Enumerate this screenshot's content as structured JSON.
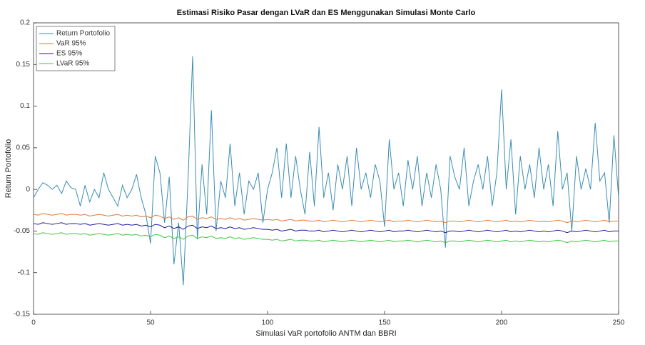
{
  "chart_data": {
    "type": "line",
    "title": "Estimasi Risiko Pasar dengan LVaR dan ES Menggunakan Simulasi Monte Carlo",
    "xlabel": "Simulasi VaR portofolio ANTM dan BBRI",
    "ylabel": "Return Portofolio",
    "x": [
      0,
      2,
      4,
      6,
      8,
      10,
      12,
      14,
      16,
      18,
      20,
      22,
      24,
      26,
      28,
      30,
      32,
      34,
      36,
      38,
      40,
      42,
      44,
      46,
      48,
      50,
      52,
      54,
      56,
      58,
      60,
      62,
      64,
      66,
      68,
      70,
      72,
      74,
      76,
      78,
      80,
      82,
      84,
      86,
      88,
      90,
      92,
      94,
      96,
      98,
      100,
      102,
      104,
      106,
      108,
      110,
      112,
      114,
      116,
      118,
      120,
      122,
      124,
      126,
      128,
      130,
      132,
      134,
      136,
      138,
      140,
      142,
      144,
      146,
      148,
      150,
      152,
      154,
      156,
      158,
      160,
      162,
      164,
      166,
      168,
      170,
      172,
      174,
      176,
      178,
      180,
      182,
      184,
      186,
      188,
      190,
      192,
      194,
      196,
      198,
      200,
      202,
      204,
      206,
      208,
      210,
      212,
      214,
      216,
      218,
      220,
      222,
      224,
      226,
      228,
      230,
      232,
      234,
      236,
      238,
      240,
      242,
      244,
      246,
      248,
      250
    ],
    "series": [
      {
        "name": "Return Portofolio",
        "color": "#3a8db5",
        "values": [
          -0.01,
          0,
          0.008,
          0.005,
          0,
          0.005,
          -0.005,
          0.01,
          0.002,
          0,
          -0.02,
          0.005,
          -0.015,
          0,
          -0.01,
          0.02,
          0,
          -0.01,
          -0.02,
          0.005,
          -0.01,
          0,
          0.018,
          -0.01,
          -0.03,
          -0.065,
          0.04,
          0.02,
          -0.04,
          0.015,
          -0.09,
          -0.04,
          -0.115,
          0.01,
          0.16,
          -0.06,
          0.03,
          -0.03,
          0.095,
          -0.05,
          0.01,
          -0.01,
          0.055,
          -0.02,
          0.02,
          -0.03,
          0.01,
          0,
          0.02,
          -0.04,
          0,
          0.02,
          0.05,
          -0.01,
          0.055,
          -0.01,
          0.04,
          0,
          -0.03,
          0.045,
          -0.02,
          0.075,
          -0.01,
          0.02,
          -0.025,
          0.03,
          0,
          0.04,
          -0.02,
          0.05,
          0,
          0.02,
          -0.01,
          0.03,
          0.01,
          -0.045,
          0.06,
          0,
          0.02,
          -0.02,
          0.035,
          0,
          0.04,
          -0.02,
          0.02,
          -0.01,
          0.03,
          0,
          -0.07,
          0.04,
          0.015,
          0,
          0.05,
          -0.02,
          0.01,
          0.03,
          0,
          0.04,
          -0.02,
          0.02,
          0.12,
          0,
          0.06,
          -0.03,
          0.04,
          0,
          0.03,
          -0.01,
          0.05,
          0,
          0.03,
          -0.02,
          0.07,
          0,
          0.02,
          -0.05,
          0.04,
          0,
          0.025,
          0,
          0.08,
          0.01,
          0.02,
          -0.04,
          0.065,
          -0.01
        ]
      },
      {
        "name": "VaR 95%",
        "color": "#e0793a",
        "values": [
          -0.03,
          -0.031,
          -0.029,
          -0.03,
          -0.031,
          -0.03,
          -0.029,
          -0.031,
          -0.03,
          -0.03,
          -0.031,
          -0.03,
          -0.032,
          -0.031,
          -0.03,
          -0.031,
          -0.032,
          -0.031,
          -0.03,
          -0.032,
          -0.031,
          -0.032,
          -0.031,
          -0.033,
          -0.032,
          -0.034,
          -0.031,
          -0.032,
          -0.035,
          -0.033,
          -0.036,
          -0.034,
          -0.037,
          -0.033,
          -0.032,
          -0.036,
          -0.034,
          -0.035,
          -0.033,
          -0.036,
          -0.035,
          -0.036,
          -0.034,
          -0.036,
          -0.035,
          -0.037,
          -0.036,
          -0.035,
          -0.036,
          -0.037,
          -0.036,
          -0.037,
          -0.036,
          -0.038,
          -0.037,
          -0.036,
          -0.038,
          -0.037,
          -0.037,
          -0.038,
          -0.038,
          -0.037,
          -0.039,
          -0.038,
          -0.037,
          -0.038,
          -0.039,
          -0.038,
          -0.037,
          -0.038,
          -0.039,
          -0.038,
          -0.037,
          -0.038,
          -0.039,
          -0.038,
          -0.037,
          -0.039,
          -0.038,
          -0.038,
          -0.037,
          -0.038,
          -0.039,
          -0.038,
          -0.037,
          -0.038,
          -0.039,
          -0.038,
          -0.04,
          -0.038,
          -0.038,
          -0.039,
          -0.038,
          -0.037,
          -0.038,
          -0.039,
          -0.038,
          -0.037,
          -0.038,
          -0.039,
          -0.038,
          -0.037,
          -0.039,
          -0.038,
          -0.039,
          -0.038,
          -0.037,
          -0.038,
          -0.039,
          -0.038,
          -0.039,
          -0.038,
          -0.037,
          -0.038,
          -0.04,
          -0.038,
          -0.039,
          -0.038,
          -0.037,
          -0.038,
          -0.039,
          -0.038,
          -0.037,
          -0.039,
          -0.038,
          -0.038
        ]
      },
      {
        "name": "ES 95%",
        "color": "#1c1c9a",
        "values": [
          -0.041,
          -0.042,
          -0.04,
          -0.041,
          -0.042,
          -0.041,
          -0.04,
          -0.042,
          -0.041,
          -0.041,
          -0.042,
          -0.041,
          -0.043,
          -0.042,
          -0.041,
          -0.042,
          -0.043,
          -0.042,
          -0.041,
          -0.043,
          -0.042,
          -0.043,
          -0.042,
          -0.044,
          -0.043,
          -0.045,
          -0.042,
          -0.043,
          -0.046,
          -0.044,
          -0.047,
          -0.045,
          -0.048,
          -0.044,
          -0.043,
          -0.047,
          -0.045,
          -0.046,
          -0.044,
          -0.047,
          -0.046,
          -0.047,
          -0.045,
          -0.047,
          -0.046,
          -0.048,
          -0.047,
          -0.046,
          -0.047,
          -0.048,
          -0.048,
          -0.049,
          -0.048,
          -0.05,
          -0.049,
          -0.048,
          -0.05,
          -0.049,
          -0.049,
          -0.05,
          -0.05,
          -0.049,
          -0.051,
          -0.05,
          -0.049,
          -0.05,
          -0.051,
          -0.05,
          -0.049,
          -0.05,
          -0.051,
          -0.05,
          -0.049,
          -0.05,
          -0.051,
          -0.05,
          -0.049,
          -0.051,
          -0.05,
          -0.05,
          -0.049,
          -0.05,
          -0.051,
          -0.05,
          -0.049,
          -0.05,
          -0.051,
          -0.05,
          -0.052,
          -0.05,
          -0.05,
          -0.051,
          -0.05,
          -0.049,
          -0.05,
          -0.051,
          -0.05,
          -0.049,
          -0.05,
          -0.051,
          -0.05,
          -0.049,
          -0.051,
          -0.05,
          -0.051,
          -0.05,
          -0.049,
          -0.05,
          -0.051,
          -0.05,
          -0.051,
          -0.05,
          -0.049,
          -0.05,
          -0.052,
          -0.05,
          -0.051,
          -0.05,
          -0.049,
          -0.05,
          -0.051,
          -0.05,
          -0.049,
          -0.051,
          -0.05,
          -0.05
        ]
      },
      {
        "name": "LVaR 95%",
        "color": "#3fc63f",
        "values": [
          -0.053,
          -0.054,
          -0.052,
          -0.053,
          -0.054,
          -0.053,
          -0.052,
          -0.054,
          -0.053,
          -0.053,
          -0.054,
          -0.053,
          -0.055,
          -0.054,
          -0.053,
          -0.054,
          -0.055,
          -0.054,
          -0.053,
          -0.055,
          -0.054,
          -0.055,
          -0.054,
          -0.056,
          -0.055,
          -0.057,
          -0.054,
          -0.055,
          -0.058,
          -0.056,
          -0.059,
          -0.057,
          -0.06,
          -0.056,
          -0.055,
          -0.059,
          -0.057,
          -0.058,
          -0.056,
          -0.059,
          -0.058,
          -0.059,
          -0.057,
          -0.059,
          -0.058,
          -0.06,
          -0.059,
          -0.058,
          -0.059,
          -0.06,
          -0.06,
          -0.061,
          -0.06,
          -0.062,
          -0.061,
          -0.06,
          -0.062,
          -0.061,
          -0.061,
          -0.062,
          -0.062,
          -0.061,
          -0.063,
          -0.062,
          -0.061,
          -0.062,
          -0.063,
          -0.062,
          -0.061,
          -0.062,
          -0.063,
          -0.062,
          -0.061,
          -0.062,
          -0.063,
          -0.062,
          -0.061,
          -0.063,
          -0.062,
          -0.062,
          -0.061,
          -0.062,
          -0.063,
          -0.062,
          -0.061,
          -0.062,
          -0.063,
          -0.062,
          -0.064,
          -0.062,
          -0.062,
          -0.063,
          -0.062,
          -0.061,
          -0.062,
          -0.063,
          -0.062,
          -0.061,
          -0.062,
          -0.063,
          -0.062,
          -0.061,
          -0.063,
          -0.062,
          -0.063,
          -0.062,
          -0.061,
          -0.062,
          -0.063,
          -0.062,
          -0.063,
          -0.062,
          -0.061,
          -0.062,
          -0.064,
          -0.062,
          -0.063,
          -0.062,
          -0.061,
          -0.062,
          -0.063,
          -0.062,
          -0.061,
          -0.063,
          -0.062,
          -0.062
        ]
      }
    ],
    "xlim": [
      0,
      250
    ],
    "xticks": [
      0,
      50,
      100,
      150,
      200,
      250
    ],
    "ylim": [
      -0.15,
      0.2
    ],
    "yticks": [
      -0.15,
      -0.1,
      -0.05,
      0,
      0.05,
      0.1,
      0.15,
      0.2
    ],
    "legend": "upper-left"
  }
}
